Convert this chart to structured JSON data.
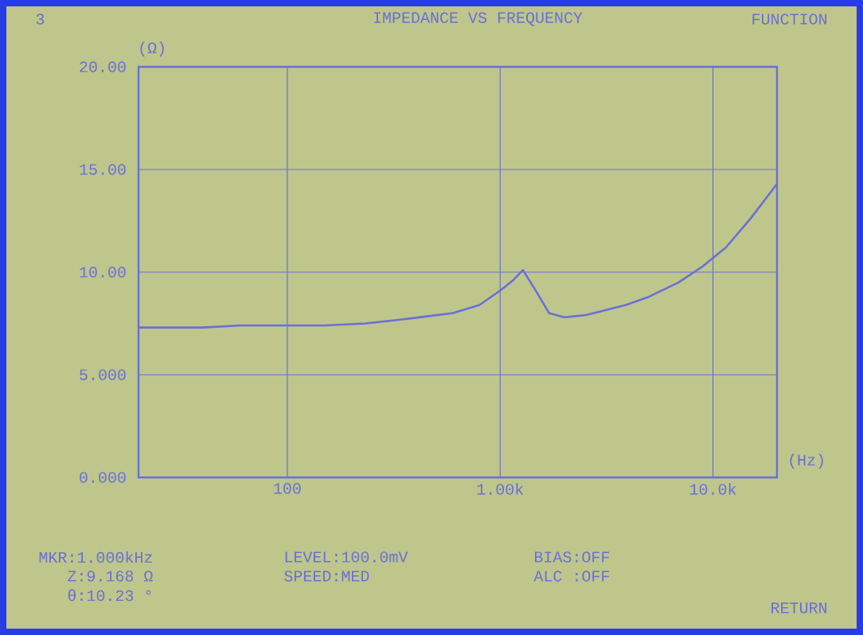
{
  "chart_data": {
    "type": "line",
    "title": "IMPEDANCE VS FREQUENCY",
    "xlabel": "(Hz)",
    "ylabel": "(Ω)",
    "x": [
      20,
      40,
      60,
      100,
      150,
      233,
      350,
      500,
      600,
      800,
      1000,
      1150,
      1280,
      1450,
      1700,
      2000,
      2500,
      3000,
      3900,
      5000,
      6900,
      9000,
      11500,
      15000,
      20000
    ],
    "series": [
      {
        "color": "#6a6fd8",
        "values": [
          7.3,
          7.3,
          7.4,
          7.4,
          7.4,
          7.5,
          7.7,
          7.9,
          8.0,
          8.4,
          9.1,
          9.6,
          10.1,
          9.2,
          8.0,
          7.8,
          7.9,
          8.1,
          8.4,
          8.8,
          9.5,
          10.3,
          11.2,
          12.6,
          14.3
        ]
      }
    ],
    "log": "x",
    "xlim": [
      20,
      20000
    ],
    "ylim": [
      0,
      20
    ],
    "xticks": [
      {
        "value": 100,
        "label": "100"
      },
      {
        "value": 1000,
        "label": "1.00k"
      },
      {
        "value": 10000,
        "label": "10.0k"
      }
    ],
    "yticks": [
      {
        "value": 0,
        "label": "0.000"
      },
      {
        "value": 5,
        "label": "5.000"
      },
      {
        "value": 10,
        "label": "10.00"
      },
      {
        "value": 15,
        "label": "15.00"
      },
      {
        "value": 20,
        "label": "20.00"
      }
    ],
    "grid": true,
    "marker": "none",
    "line_style": "solid",
    "annotations": [
      "3",
      "FUNCTION",
      "MKR:1.000kHz",
      "Z:9.168 Ω",
      "θ:10.23 °",
      "LEVEL:100.0mV",
      "SPEED:MED",
      "BIAS:OFF",
      "ALC :OFF",
      "RETURN"
    ]
  }
}
